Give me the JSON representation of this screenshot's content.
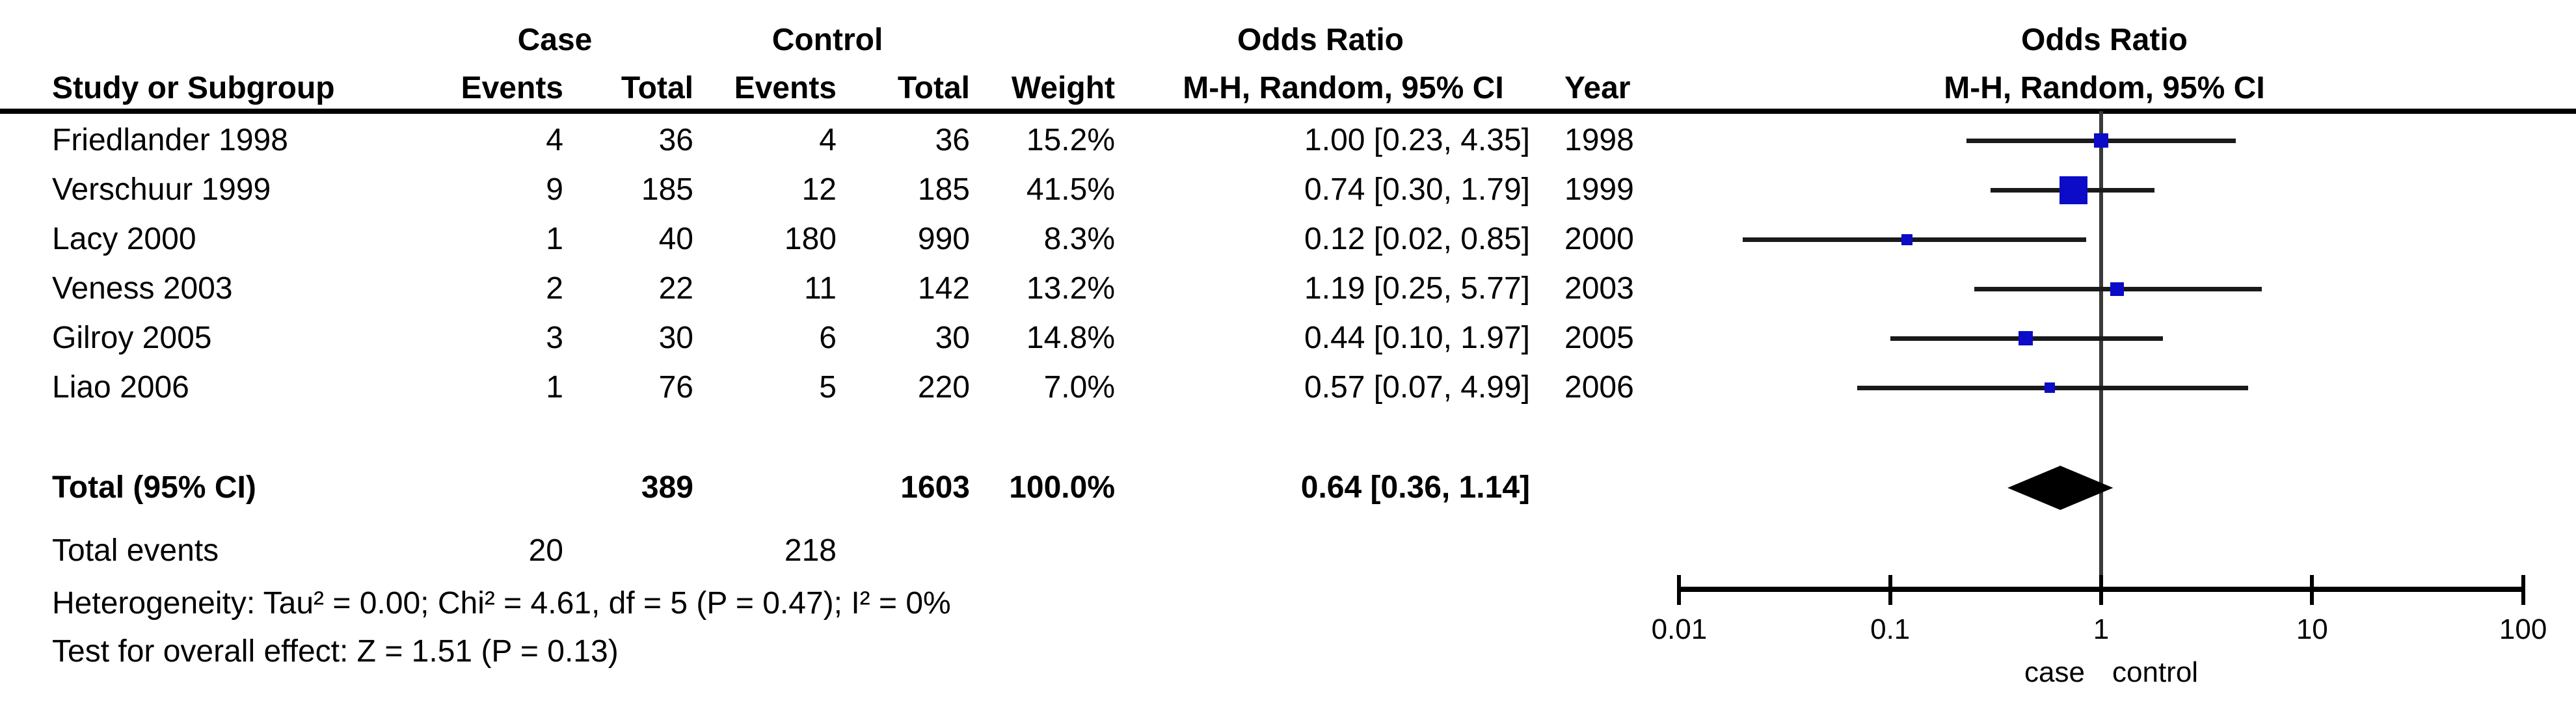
{
  "colors": {
    "background": "#ffffff",
    "text": "#000000",
    "square_blue": "#0b0bc8",
    "ci_line": "#1a1a1a",
    "axis_line": "#000000",
    "null_line": "#3a3a3a",
    "diamond": "#000000"
  },
  "table": {
    "headers": {
      "case_group": "Case",
      "control_group": "Control",
      "or_col_line1": "Odds Ratio",
      "or_col_line2": "M-H, Random, 95% CI",
      "study": "Study or Subgroup",
      "case_events": "Events",
      "case_total": "Total",
      "control_events": "Events",
      "control_total": "Total",
      "weight": "Weight",
      "year": "Year",
      "plot_line1": "Odds Ratio",
      "plot_line2": "M-H, Random, 95% CI"
    },
    "rows": [
      {
        "study": "Friedlander 1998",
        "case_events": "4",
        "case_total": "36",
        "control_events": "4",
        "control_total": "36",
        "weight": "15.2%",
        "or_ci": "1.00 [0.23, 4.35]",
        "year": "1998"
      },
      {
        "study": "Verschuur 1999",
        "case_events": "9",
        "case_total": "185",
        "control_events": "12",
        "control_total": "185",
        "weight": "41.5%",
        "or_ci": "0.74 [0.30, 1.79]",
        "year": "1999"
      },
      {
        "study": "Lacy 2000",
        "case_events": "1",
        "case_total": "40",
        "control_events": "180",
        "control_total": "990",
        "weight": "8.3%",
        "or_ci": "0.12 [0.02, 0.85]",
        "year": "2000"
      },
      {
        "study": "Veness 2003",
        "case_events": "2",
        "case_total": "22",
        "control_events": "11",
        "control_total": "142",
        "weight": "13.2%",
        "or_ci": "1.19 [0.25, 5.77]",
        "year": "2003"
      },
      {
        "study": "Gilroy 2005",
        "case_events": "3",
        "case_total": "30",
        "control_events": "6",
        "control_total": "30",
        "weight": "14.8%",
        "or_ci": "0.44 [0.10, 1.97]",
        "year": "2005"
      },
      {
        "study": "Liao 2006",
        "case_events": "1",
        "case_total": "76",
        "control_events": "5",
        "control_total": "220",
        "weight": "7.0%",
        "or_ci": "0.57 [0.07, 4.99]",
        "year": "2006"
      }
    ],
    "total_row": {
      "label": "Total (95% CI)",
      "case_total": "389",
      "control_total": "1603",
      "weight": "100.0%",
      "or_ci": "0.64 [0.36, 1.14]"
    },
    "total_events_row": {
      "label": "Total events",
      "case_events": "20",
      "control_events": "218"
    },
    "heterogeneity": "Heterogeneity: Tau² = 0.00; Chi² = 4.61, df = 5 (P = 0.47); I² = 0%",
    "overall_effect": "Test for overall effect: Z = 1.51 (P = 0.13)"
  },
  "chart_data": {
    "type": "forest",
    "effect_measure": "Odds Ratio, M-H, Random, 95% CI",
    "x_scale": "log10",
    "xlim": [
      0.01,
      100
    ],
    "x_ticks": [
      0.01,
      0.1,
      1,
      10,
      100
    ],
    "x_tick_labels": [
      "0.01",
      "0.1",
      "1",
      "10",
      "100"
    ],
    "null_value": 1,
    "favours_left": "case",
    "favours_right": "control",
    "studies": [
      {
        "name": "Friedlander 1998",
        "year": "1998",
        "or": 1.0,
        "ci_low": 0.23,
        "ci_high": 4.35,
        "weight_pct": 15.2
      },
      {
        "name": "Verschuur 1999",
        "year": "1999",
        "or": 0.74,
        "ci_low": 0.3,
        "ci_high": 1.79,
        "weight_pct": 41.5
      },
      {
        "name": "Lacy 2000",
        "year": "2000",
        "or": 0.12,
        "ci_low": 0.02,
        "ci_high": 0.85,
        "weight_pct": 8.3
      },
      {
        "name": "Veness 2003",
        "year": "2003",
        "or": 1.19,
        "ci_low": 0.25,
        "ci_high": 5.77,
        "weight_pct": 13.2
      },
      {
        "name": "Gilroy 2005",
        "year": "2005",
        "or": 0.44,
        "ci_low": 0.1,
        "ci_high": 1.97,
        "weight_pct": 14.8
      },
      {
        "name": "Liao 2006",
        "year": "2006",
        "or": 0.57,
        "ci_low": 0.07,
        "ci_high": 4.99,
        "weight_pct": 7.0
      }
    ],
    "pooled": {
      "label": "Total (95% CI)",
      "or": 0.64,
      "ci_low": 0.36,
      "ci_high": 1.14,
      "weight_pct": 100.0
    }
  }
}
